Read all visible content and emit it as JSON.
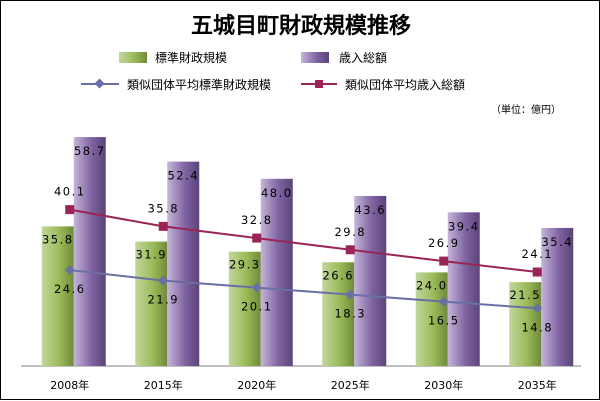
{
  "chart_data": {
    "type": "bar",
    "title": "五城目町財政規模推移",
    "unit": "（単位：億円）",
    "categories": [
      "2008年",
      "2015年",
      "2020年",
      "2025年",
      "2030年",
      "2035年"
    ],
    "series": [
      {
        "name": "標準財政規模",
        "kind": "bar",
        "values": [
          35.8,
          31.9,
          29.3,
          26.6,
          24.0,
          21.5
        ],
        "color": "#9bbb59"
      },
      {
        "name": "歳入総額",
        "kind": "bar",
        "values": [
          58.7,
          52.4,
          48.0,
          43.6,
          39.4,
          35.4
        ],
        "color": "#8064a2"
      },
      {
        "name": "類似団体平均標準財政規模",
        "kind": "line",
        "values": [
          24.6,
          21.9,
          20.1,
          18.3,
          16.5,
          14.8
        ],
        "color": "#6a6fa6",
        "marker": "diamond"
      },
      {
        "name": "類似団体平均歳入総額",
        "kind": "line",
        "values": [
          40.1,
          35.8,
          32.8,
          29.8,
          26.9,
          24.1
        ],
        "color": "#9a2455",
        "marker": "square"
      }
    ],
    "labels": {
      "標準財政規模": [
        "35.8",
        "31.9",
        "29.3",
        "26.6",
        "24.0",
        "21.5"
      ],
      "歳入総額": [
        "58.7",
        "52.4",
        "48.0",
        "43.6",
        "39.4",
        "35.4"
      ],
      "類似団体平均標準財政規模": [
        "24.6",
        "21.9",
        "20.1",
        "18.3",
        "16.5",
        "14.8"
      ],
      "類似団体平均歳入総額": [
        "40.1",
        "35.8",
        "32.8",
        "29.8",
        "26.9",
        "24.1"
      ]
    },
    "ylim": [
      0,
      70
    ],
    "grid": false,
    "legend": "top"
  }
}
